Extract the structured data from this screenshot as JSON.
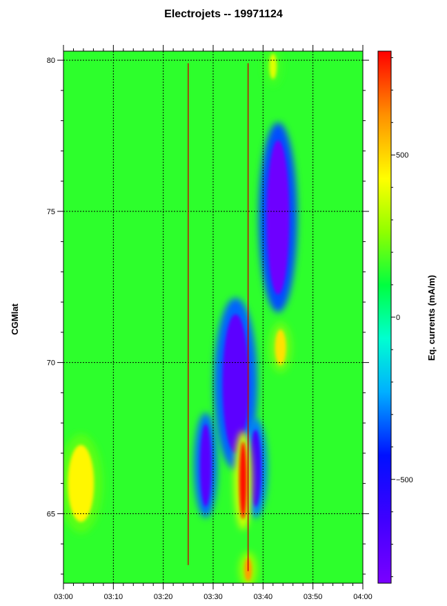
{
  "chart_data": {
    "type": "heatmap",
    "title": "Electrojets -- 19971124",
    "xlabel": "",
    "ylabel": "CGMlat",
    "colorbar_label": "Eq. currents (mA/m)",
    "x_ticks": [
      "03:00",
      "03:10",
      "03:20",
      "03:30",
      "03:40",
      "03:50",
      "04:00"
    ],
    "x_range": [
      "03:00",
      "04:00"
    ],
    "y_ticks": [
      65,
      70,
      75,
      80
    ],
    "y_range": [
      62.7,
      80.3
    ],
    "colorbar_ticks": [
      500,
      0,
      -500
    ],
    "colorbar_range": [
      -820,
      820
    ],
    "grid": true,
    "colorscale": [
      "#7a00ff",
      "#3f00ff",
      "#0010ff",
      "#00b0ff",
      "#00ffd0",
      "#00ff40",
      "#90ff00",
      "#ffff00",
      "#ff9000",
      "#ff0000"
    ],
    "vertical_markers": [
      {
        "time": "03:25",
        "from_lat": 63.3,
        "to_lat": 79.9,
        "color": "#cc0000"
      },
      {
        "time": "03:37",
        "from_lat": 63.1,
        "to_lat": 79.9,
        "color": "#cc0000"
      }
    ],
    "background_level": 150,
    "features": [
      {
        "kind": "westward electrojet",
        "time_start": "03:40",
        "time_end": "03:46",
        "lat_min": 71.8,
        "lat_max": 77.8,
        "peak": -780
      },
      {
        "kind": "westward electrojet",
        "time_start": "03:31",
        "time_end": "03:38",
        "lat_min": 66.6,
        "lat_max": 72.0,
        "peak": -720
      },
      {
        "kind": "westward electrojet",
        "time_start": "03:27",
        "time_end": "03:30",
        "lat_min": 65.0,
        "lat_max": 68.2,
        "peak": -700
      },
      {
        "kind": "westward electrojet",
        "time_start": "03:37",
        "time_end": "03:40",
        "lat_min": 65.0,
        "lat_max": 68.0,
        "peak": -650
      },
      {
        "kind": "eastward electrojet",
        "time_start": "03:35",
        "time_end": "03:37",
        "lat_min": 64.6,
        "lat_max": 67.6,
        "peak": 800
      },
      {
        "kind": "eastward electrojet",
        "time_start": "03:42",
        "time_end": "03:45",
        "lat_min": 69.8,
        "lat_max": 71.2,
        "peak": 480
      },
      {
        "kind": "eastward electrojet",
        "time_start": "03:36",
        "time_end": "03:38",
        "lat_min": 62.7,
        "lat_max": 63.6,
        "peak": 600
      },
      {
        "kind": "eastward electrojet",
        "time_start": "03:00",
        "time_end": "03:07",
        "lat_min": 64.5,
        "lat_max": 67.5,
        "peak": 440
      },
      {
        "kind": "eastward electrojet",
        "time_start": "03:41",
        "time_end": "03:43",
        "lat_min": 79.3,
        "lat_max": 80.3,
        "peak": 380
      }
    ]
  }
}
